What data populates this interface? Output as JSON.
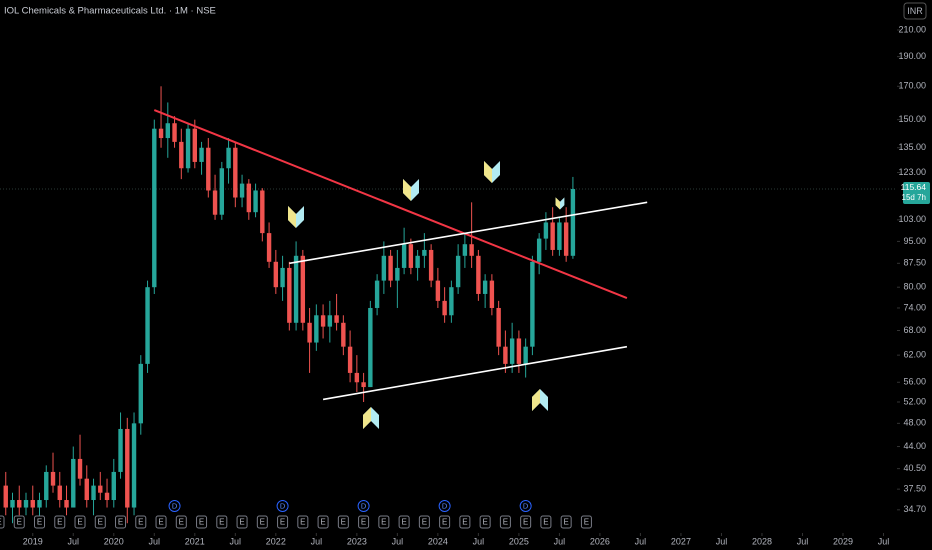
{
  "chart_data": {
    "type": "candlestick",
    "title": "IOL Chemicals & Pharmaceuticals Ltd. · 1M · NSE",
    "currency": "INR",
    "last_price": {
      "value": 115.64,
      "label": "115.64"
    },
    "countdown": "15d 7h",
    "up_color": "#26a69a",
    "down_color": "#ef5350",
    "log_scale": true,
    "x": [
      "2018-09",
      "2018-10",
      "2018-11",
      "2018-12",
      "2019-01",
      "2019-02",
      "2019-03",
      "2019-04",
      "2019-05",
      "2019-06",
      "2019-07",
      "2019-08",
      "2019-09",
      "2019-10",
      "2019-11",
      "2019-12",
      "2020-01",
      "2020-02",
      "2020-03",
      "2020-04",
      "2020-05",
      "2020-06",
      "2020-07",
      "2020-08",
      "2020-09",
      "2020-10",
      "2020-11",
      "2020-12",
      "2021-01",
      "2021-02",
      "2021-03",
      "2021-04",
      "2021-05",
      "2021-06",
      "2021-07",
      "2021-08",
      "2021-09",
      "2021-10",
      "2021-11",
      "2021-12",
      "2022-01",
      "2022-02",
      "2022-03",
      "2022-04",
      "2022-05",
      "2022-06",
      "2022-07",
      "2022-08",
      "2022-09",
      "2022-10",
      "2022-11",
      "2022-12",
      "2023-01",
      "2023-02",
      "2023-03",
      "2023-04",
      "2023-05",
      "2023-06",
      "2023-07",
      "2023-08",
      "2023-09",
      "2023-10",
      "2023-11",
      "2023-12",
      "2024-01",
      "2024-02",
      "2024-03",
      "2024-04",
      "2024-05",
      "2024-06",
      "2024-07",
      "2024-08",
      "2024-09",
      "2024-10",
      "2024-11",
      "2024-12",
      "2025-01",
      "2025-02",
      "2025-03",
      "2025-04",
      "2025-05",
      "2025-06",
      "2025-07",
      "2025-08",
      "2025-09"
    ],
    "open": [
      38,
      35,
      36,
      35,
      36,
      35,
      36,
      40,
      38,
      36,
      35,
      42,
      39,
      36,
      38,
      37,
      36,
      40,
      47,
      35,
      48,
      60,
      80,
      145,
      140,
      148,
      138,
      125,
      145,
      128,
      135,
      115,
      105,
      125,
      135,
      112,
      118,
      106,
      115,
      98,
      88,
      80,
      86,
      70,
      90,
      70,
      65,
      72,
      69,
      72,
      70,
      64,
      58,
      56,
      55,
      74,
      82,
      90,
      82,
      86,
      94,
      86,
      90,
      92,
      82,
      76,
      72,
      80,
      90,
      94,
      90,
      78,
      82,
      74,
      64,
      60,
      66,
      60,
      64,
      88,
      96,
      102,
      92,
      102,
      90
    ],
    "high": [
      40,
      37,
      38,
      37,
      38,
      37,
      41,
      43,
      40,
      38,
      44,
      46,
      41,
      39,
      40,
      39,
      42,
      50,
      49,
      50,
      62,
      82,
      150,
      170,
      160,
      152,
      145,
      148,
      150,
      138,
      140,
      122,
      128,
      140,
      138,
      122,
      120,
      118,
      116,
      102,
      92,
      90,
      88,
      95,
      92,
      74,
      75,
      75,
      76,
      78,
      72,
      68,
      62,
      58,
      76,
      84,
      95,
      92,
      92,
      100,
      96,
      92,
      98,
      94,
      86,
      80,
      82,
      94,
      98,
      110,
      92,
      84,
      84,
      76,
      68,
      70,
      68,
      66,
      90,
      98,
      106,
      108,
      104,
      108,
      121
    ],
    "low": [
      34,
      33,
      34,
      34,
      34,
      33,
      35,
      37,
      35,
      34,
      35,
      38,
      35,
      34,
      36,
      35,
      35,
      39,
      33,
      34,
      46,
      58,
      78,
      135,
      130,
      135,
      120,
      123,
      125,
      122,
      112,
      103,
      103,
      118,
      108,
      108,
      103,
      104,
      95,
      86,
      78,
      76,
      68,
      68,
      68,
      58,
      63,
      66,
      65,
      68,
      62,
      56,
      54,
      52,
      55,
      72,
      78,
      80,
      74,
      84,
      84,
      82,
      86,
      80,
      74,
      70,
      70,
      78,
      86,
      86,
      76,
      74,
      72,
      62,
      58,
      58,
      58,
      57,
      62,
      84,
      92,
      90,
      90,
      88,
      89
    ],
    "close": [
      35,
      36,
      35,
      36,
      35,
      36,
      40,
      38,
      36,
      35,
      42,
      39,
      36,
      38,
      37,
      36,
      40,
      47,
      35,
      48,
      60,
      80,
      145,
      140,
      148,
      138,
      125,
      145,
      128,
      135,
      115,
      105,
      125,
      135,
      112,
      118,
      106,
      115,
      98,
      88,
      80,
      86,
      70,
      90,
      70,
      65,
      72,
      69,
      72,
      70,
      64,
      58,
      56,
      55,
      74,
      82,
      90,
      82,
      86,
      94,
      86,
      90,
      92,
      82,
      76,
      72,
      80,
      90,
      94,
      90,
      78,
      82,
      74,
      64,
      60,
      66,
      60,
      64,
      88,
      96,
      102,
      92,
      102,
      90,
      115.64
    ],
    "xlim": [
      "2018-08",
      "2029-09"
    ],
    "xticks": [
      {
        "value": "2019-01",
        "label": "2019"
      },
      {
        "value": "2019-07",
        "label": "Jul"
      },
      {
        "value": "2020-01",
        "label": "2020"
      },
      {
        "value": "2020-07",
        "label": "Jul"
      },
      {
        "value": "2021-01",
        "label": "2021"
      },
      {
        "value": "2021-07",
        "label": "Jul"
      },
      {
        "value": "2022-01",
        "label": "2022"
      },
      {
        "value": "2022-07",
        "label": "Jul"
      },
      {
        "value": "2023-01",
        "label": "2023"
      },
      {
        "value": "2023-07",
        "label": "Jul"
      },
      {
        "value": "2024-01",
        "label": "2024"
      },
      {
        "value": "2024-07",
        "label": "Jul"
      },
      {
        "value": "2025-01",
        "label": "2025"
      },
      {
        "value": "2025-07",
        "label": "Jul"
      },
      {
        "value": "2026-01",
        "label": "2026"
      },
      {
        "value": "2026-07",
        "label": "Jul"
      },
      {
        "value": "2027-01",
        "label": "2027"
      },
      {
        "value": "2027-07",
        "label": "Jul"
      },
      {
        "value": "2028-01",
        "label": "2028"
      },
      {
        "value": "2028-07",
        "label": "Jul"
      },
      {
        "value": "2029-01",
        "label": "2029"
      },
      {
        "value": "2029-07",
        "label": "Jul"
      }
    ],
    "ylim": [
      33.4,
      235
    ],
    "yticks": [
      {
        "value": 210,
        "label": "210.00"
      },
      {
        "value": 190,
        "label": "190.00"
      },
      {
        "value": 170,
        "label": "170.00"
      },
      {
        "value": 150,
        "label": "150.00"
      },
      {
        "value": 135,
        "label": "135.00"
      },
      {
        "value": 123,
        "label": "123.00"
      },
      {
        "value": 103,
        "label": "103.00"
      },
      {
        "value": 95,
        "label": "95.00"
      },
      {
        "value": 87.5,
        "label": "87.50"
      },
      {
        "value": 80,
        "label": "80.00"
      },
      {
        "value": 74,
        "label": "74.00"
      },
      {
        "value": 68,
        "label": "68.00"
      },
      {
        "value": 62,
        "label": "62.00"
      },
      {
        "value": 56,
        "label": "56.00"
      },
      {
        "value": 52,
        "label": "52.00"
      },
      {
        "value": 48,
        "label": "48.00"
      },
      {
        "value": 44,
        "label": "44.00"
      },
      {
        "value": 40.5,
        "label": "40.50"
      },
      {
        "value": 37.5,
        "label": "37.50"
      },
      {
        "value": 34.7,
        "label": "34.70"
      }
    ],
    "trendlines": [
      {
        "color": "#f23645",
        "x": [
          "2020-07",
          "2026-05"
        ],
        "y": [
          155.5,
          76.8
        ]
      },
      {
        "color": "#ffffff",
        "x": [
          "2022-03",
          "2026-08"
        ],
        "y": [
          87.5,
          110
        ]
      },
      {
        "color": "#ffffff",
        "x": [
          "2022-08",
          "2026-05"
        ],
        "y": [
          52.5,
          64
        ]
      }
    ],
    "earnings": {
      "label": "E",
      "dates": [
        "2018-08",
        "2018-11",
        "2019-02",
        "2019-05",
        "2019-08",
        "2019-11",
        "2020-02",
        "2020-05",
        "2020-08",
        "2020-11",
        "2021-02",
        "2021-05",
        "2021-08",
        "2021-11",
        "2022-02",
        "2022-05",
        "2022-08",
        "2022-11",
        "2023-02",
        "2023-05",
        "2023-08",
        "2023-11",
        "2024-02",
        "2024-05",
        "2024-08",
        "2024-11",
        "2025-02",
        "2025-05",
        "2025-08",
        "2025-11"
      ]
    },
    "dividends": {
      "label": "D",
      "dates": [
        "2020-10",
        "2022-02",
        "2023-02",
        "2024-02",
        "2025-02"
      ]
    }
  }
}
